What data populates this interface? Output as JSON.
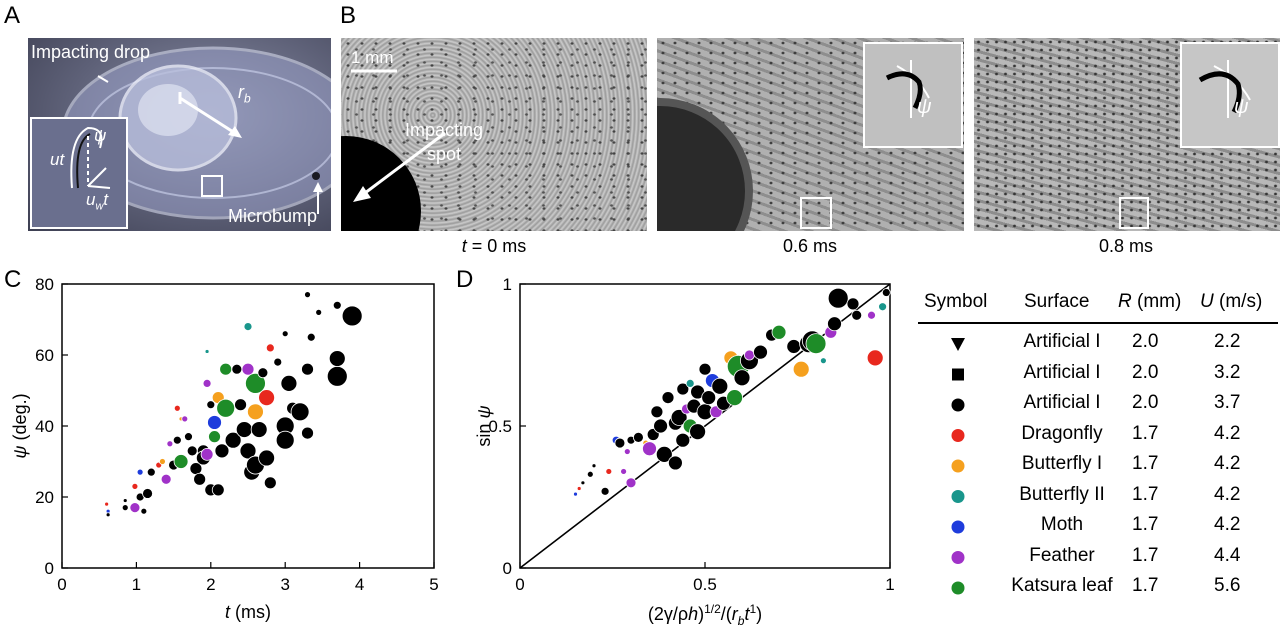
{
  "panels": {
    "A": "A",
    "B": "B",
    "C": "C",
    "D": "D"
  },
  "panelA": {
    "impacting_drop": "Impacting drop",
    "rb": "r",
    "rb_sub": "b",
    "psi": "ψ",
    "ut": "ut",
    "uwt": "u",
    "uwt_sub": "w",
    "uwt_t": "t",
    "microbump": "Microbump"
  },
  "panelB": {
    "scale": "1 mm",
    "impacting_spot": "Impacting\nspot",
    "times": [
      "t = 0 ms",
      "0.6 ms",
      "0.8 ms"
    ],
    "t_italic": "t",
    "t0_rest": " = 0 ms",
    "psi": "ψ"
  },
  "colors": {
    "black": "#000000",
    "dragonfly": "#e8281e",
    "butterfly1": "#f5a01e",
    "butterfly2": "#19968c",
    "moth": "#1e3cdc",
    "feather": "#a032c8",
    "katsura": "#1e8c28"
  },
  "chart_data": [
    {
      "type": "scatter",
      "id": "C",
      "xlabel": "t (ms)",
      "ylabel": "ψ (deg.)",
      "xlim": [
        0,
        5
      ],
      "ylim": [
        0,
        80
      ],
      "xticks": [
        "0",
        "1",
        "2",
        "3",
        "4",
        "5"
      ],
      "yticks": [
        "0",
        "20",
        "40",
        "60",
        "80"
      ],
      "points": [
        {
          "x": 0.6,
          "y": 18,
          "c": "dragonfly",
          "s": 2
        },
        {
          "x": 0.62,
          "y": 16,
          "c": "moth",
          "s": 2
        },
        {
          "x": 0.62,
          "y": 15,
          "c": "black",
          "s": 2
        },
        {
          "x": 0.85,
          "y": 17,
          "c": "black",
          "s": 3
        },
        {
          "x": 0.85,
          "y": 19,
          "c": "black",
          "s": 2
        },
        {
          "x": 0.98,
          "y": 23,
          "c": "dragonfly",
          "s": 3
        },
        {
          "x": 0.98,
          "y": 17,
          "c": "feather",
          "s": 5
        },
        {
          "x": 1.05,
          "y": 20,
          "c": "black",
          "s": 4
        },
        {
          "x": 1.1,
          "y": 16,
          "c": "black",
          "s": 3
        },
        {
          "x": 1.05,
          "y": 27,
          "c": "moth",
          "s": 3
        },
        {
          "x": 1.2,
          "y": 27,
          "c": "black",
          "s": 4
        },
        {
          "x": 1.15,
          "y": 21,
          "c": "black",
          "s": 5
        },
        {
          "x": 1.3,
          "y": 29,
          "c": "dragonfly",
          "s": 3
        },
        {
          "x": 1.35,
          "y": 30,
          "c": "butterfly1",
          "s": 3
        },
        {
          "x": 1.4,
          "y": 25,
          "c": "feather",
          "s": 5
        },
        {
          "x": 1.45,
          "y": 35,
          "c": "feather",
          "s": 3
        },
        {
          "x": 1.5,
          "y": 29,
          "c": "black",
          "s": 5
        },
        {
          "x": 1.55,
          "y": 36,
          "c": "black",
          "s": 4
        },
        {
          "x": 1.6,
          "y": 30,
          "c": "katsura",
          "s": 7
        },
        {
          "x": 1.55,
          "y": 45,
          "c": "dragonfly",
          "s": 3
        },
        {
          "x": 1.6,
          "y": 42,
          "c": "butterfly1",
          "s": 2
        },
        {
          "x": 1.65,
          "y": 42,
          "c": "feather",
          "s": 3
        },
        {
          "x": 1.7,
          "y": 37,
          "c": "black",
          "s": 4
        },
        {
          "x": 1.75,
          "y": 33,
          "c": "black",
          "s": 5
        },
        {
          "x": 1.8,
          "y": 28,
          "c": "black",
          "s": 6
        },
        {
          "x": 1.9,
          "y": 33,
          "c": "black",
          "s": 6
        },
        {
          "x": 1.85,
          "y": 25,
          "c": "black",
          "s": 6
        },
        {
          "x": 1.9,
          "y": 31,
          "c": "black",
          "s": 7
        },
        {
          "x": 1.95,
          "y": 32,
          "c": "feather",
          "s": 6
        },
        {
          "x": 1.95,
          "y": 52,
          "c": "feather",
          "s": 4
        },
        {
          "x": 1.95,
          "y": 61,
          "c": "butterfly2",
          "s": 2
        },
        {
          "x": 2.05,
          "y": 41,
          "c": "moth",
          "s": 7
        },
        {
          "x": 2.05,
          "y": 37,
          "c": "katsura",
          "s": 6
        },
        {
          "x": 2.0,
          "y": 46,
          "c": "black",
          "s": 4
        },
        {
          "x": 2.1,
          "y": 48,
          "c": "butterfly1",
          "s": 6
        },
        {
          "x": 2.15,
          "y": 33,
          "c": "black",
          "s": 7
        },
        {
          "x": 2.0,
          "y": 22,
          "c": "black",
          "s": 6
        },
        {
          "x": 2.1,
          "y": 22,
          "c": "black",
          "s": 6
        },
        {
          "x": 2.2,
          "y": 45,
          "c": "katsura",
          "s": 9
        },
        {
          "x": 2.2,
          "y": 56,
          "c": "katsura",
          "s": 6
        },
        {
          "x": 2.3,
          "y": 36,
          "c": "black",
          "s": 8
        },
        {
          "x": 2.35,
          "y": 56,
          "c": "black",
          "s": 5
        },
        {
          "x": 2.4,
          "y": 46,
          "c": "black",
          "s": 6
        },
        {
          "x": 2.45,
          "y": 39,
          "c": "black",
          "s": 8
        },
        {
          "x": 2.5,
          "y": 33,
          "c": "black",
          "s": 8
        },
        {
          "x": 2.5,
          "y": 56,
          "c": "feather",
          "s": 6
        },
        {
          "x": 2.5,
          "y": 68,
          "c": "butterfly2",
          "s": 4
        },
        {
          "x": 2.55,
          "y": 27,
          "c": "black",
          "s": 8
        },
        {
          "x": 2.6,
          "y": 29,
          "c": "black",
          "s": 9
        },
        {
          "x": 2.6,
          "y": 44,
          "c": "butterfly1",
          "s": 8
        },
        {
          "x": 2.6,
          "y": 52,
          "c": "katsura",
          "s": 10
        },
        {
          "x": 2.65,
          "y": 39,
          "c": "black",
          "s": 8
        },
        {
          "x": 2.7,
          "y": 55,
          "c": "black",
          "s": 5
        },
        {
          "x": 2.75,
          "y": 48,
          "c": "dragonfly",
          "s": 8
        },
        {
          "x": 2.75,
          "y": 31,
          "c": "black",
          "s": 8
        },
        {
          "x": 2.8,
          "y": 24,
          "c": "black",
          "s": 6
        },
        {
          "x": 2.8,
          "y": 62,
          "c": "dragonfly",
          "s": 4
        },
        {
          "x": 2.9,
          "y": 58,
          "c": "black",
          "s": 4
        },
        {
          "x": 3.0,
          "y": 40,
          "c": "black",
          "s": 9
        },
        {
          "x": 3.0,
          "y": 36,
          "c": "black",
          "s": 9
        },
        {
          "x": 3.05,
          "y": 52,
          "c": "black",
          "s": 8
        },
        {
          "x": 3.0,
          "y": 66,
          "c": "black",
          "s": 3
        },
        {
          "x": 3.1,
          "y": 45,
          "c": "black",
          "s": 6
        },
        {
          "x": 3.2,
          "y": 44,
          "c": "black",
          "s": 9
        },
        {
          "x": 3.3,
          "y": 38,
          "c": "black",
          "s": 6
        },
        {
          "x": 3.3,
          "y": 56,
          "c": "black",
          "s": 6
        },
        {
          "x": 3.3,
          "y": 77,
          "c": "black",
          "s": 3
        },
        {
          "x": 3.35,
          "y": 65,
          "c": "black",
          "s": 4
        },
        {
          "x": 3.45,
          "y": 72,
          "c": "black",
          "s": 3
        },
        {
          "x": 3.7,
          "y": 54,
          "c": "black",
          "s": 10
        },
        {
          "x": 3.7,
          "y": 59,
          "c": "black",
          "s": 8
        },
        {
          "x": 3.7,
          "y": 74,
          "c": "black",
          "s": 4
        },
        {
          "x": 3.9,
          "y": 71,
          "c": "black",
          "s": 10
        }
      ]
    },
    {
      "type": "scatter",
      "id": "D",
      "xlabel": "(2γ/ρh)^1/2/(r_b t^1)",
      "ylabel": "sin ψ",
      "xlim": [
        0,
        1
      ],
      "ylim": [
        0,
        1
      ],
      "xticks": [
        "0",
        "0.5",
        "1"
      ],
      "yticks": [
        "0",
        "0.5",
        "1"
      ],
      "line": [
        [
          0,
          0
        ],
        [
          1,
          1
        ]
      ],
      "points": [
        {
          "x": 0.15,
          "y": 0.26,
          "c": "moth",
          "s": 2
        },
        {
          "x": 0.16,
          "y": 0.28,
          "c": "dragonfly",
          "s": 2
        },
        {
          "x": 0.17,
          "y": 0.3,
          "c": "black",
          "s": 2
        },
        {
          "x": 0.19,
          "y": 0.33,
          "c": "black",
          "s": 3
        },
        {
          "x": 0.2,
          "y": 0.36,
          "c": "black",
          "s": 2
        },
        {
          "x": 0.23,
          "y": 0.27,
          "c": "black",
          "s": 4
        },
        {
          "x": 0.24,
          "y": 0.34,
          "c": "dragonfly",
          "s": 3
        },
        {
          "x": 0.26,
          "y": 0.45,
          "c": "moth",
          "s": 4
        },
        {
          "x": 0.27,
          "y": 0.44,
          "c": "black",
          "s": 5
        },
        {
          "x": 0.28,
          "y": 0.34,
          "c": "feather",
          "s": 3
        },
        {
          "x": 0.29,
          "y": 0.41,
          "c": "feather",
          "s": 3
        },
        {
          "x": 0.3,
          "y": 0.45,
          "c": "black",
          "s": 4
        },
        {
          "x": 0.3,
          "y": 0.3,
          "c": "feather",
          "s": 5
        },
        {
          "x": 0.32,
          "y": 0.46,
          "c": "black",
          "s": 5
        },
        {
          "x": 0.34,
          "y": 0.44,
          "c": "butterfly1",
          "s": 3
        },
        {
          "x": 0.35,
          "y": 0.42,
          "c": "feather",
          "s": 7
        },
        {
          "x": 0.36,
          "y": 0.47,
          "c": "black",
          "s": 6
        },
        {
          "x": 0.37,
          "y": 0.55,
          "c": "black",
          "s": 6
        },
        {
          "x": 0.38,
          "y": 0.5,
          "c": "black",
          "s": 7
        },
        {
          "x": 0.39,
          "y": 0.4,
          "c": "black",
          "s": 8
        },
        {
          "x": 0.4,
          "y": 0.6,
          "c": "black",
          "s": 6
        },
        {
          "x": 0.42,
          "y": 0.51,
          "c": "black",
          "s": 7
        },
        {
          "x": 0.42,
          "y": 0.37,
          "c": "black",
          "s": 7
        },
        {
          "x": 0.43,
          "y": 0.53,
          "c": "black",
          "s": 8
        },
        {
          "x": 0.44,
          "y": 0.45,
          "c": "black",
          "s": 7
        },
        {
          "x": 0.44,
          "y": 0.63,
          "c": "black",
          "s": 6
        },
        {
          "x": 0.45,
          "y": 0.56,
          "c": "feather",
          "s": 5
        },
        {
          "x": 0.46,
          "y": 0.65,
          "c": "butterfly2",
          "s": 4
        },
        {
          "x": 0.46,
          "y": 0.5,
          "c": "katsura",
          "s": 7
        },
        {
          "x": 0.47,
          "y": 0.57,
          "c": "black",
          "s": 7
        },
        {
          "x": 0.48,
          "y": 0.48,
          "c": "black",
          "s": 8
        },
        {
          "x": 0.48,
          "y": 0.62,
          "c": "black",
          "s": 7
        },
        {
          "x": 0.5,
          "y": 0.55,
          "c": "black",
          "s": 8
        },
        {
          "x": 0.5,
          "y": 0.7,
          "c": "black",
          "s": 6
        },
        {
          "x": 0.51,
          "y": 0.6,
          "c": "black",
          "s": 7
        },
        {
          "x": 0.52,
          "y": 0.66,
          "c": "moth",
          "s": 7
        },
        {
          "x": 0.53,
          "y": 0.55,
          "c": "feather",
          "s": 6
        },
        {
          "x": 0.54,
          "y": 0.64,
          "c": "black",
          "s": 8
        },
        {
          "x": 0.55,
          "y": 0.58,
          "c": "black",
          "s": 7
        },
        {
          "x": 0.57,
          "y": 0.74,
          "c": "butterfly1",
          "s": 7
        },
        {
          "x": 0.58,
          "y": 0.6,
          "c": "katsura",
          "s": 8
        },
        {
          "x": 0.59,
          "y": 0.71,
          "c": "katsura",
          "s": 11
        },
        {
          "x": 0.6,
          "y": 0.67,
          "c": "black",
          "s": 8
        },
        {
          "x": 0.62,
          "y": 0.73,
          "c": "black",
          "s": 9
        },
        {
          "x": 0.62,
          "y": 0.75,
          "c": "feather",
          "s": 5
        },
        {
          "x": 0.65,
          "y": 0.76,
          "c": "black",
          "s": 7
        },
        {
          "x": 0.68,
          "y": 0.82,
          "c": "black",
          "s": 6
        },
        {
          "x": 0.7,
          "y": 0.83,
          "c": "katsura",
          "s": 7
        },
        {
          "x": 0.74,
          "y": 0.78,
          "c": "black",
          "s": 7
        },
        {
          "x": 0.76,
          "y": 0.7,
          "c": "butterfly1",
          "s": 8
        },
        {
          "x": 0.78,
          "y": 0.79,
          "c": "black",
          "s": 9
        },
        {
          "x": 0.79,
          "y": 0.8,
          "c": "black",
          "s": 10
        },
        {
          "x": 0.8,
          "y": 0.79,
          "c": "katsura",
          "s": 10
        },
        {
          "x": 0.82,
          "y": 0.73,
          "c": "butterfly2",
          "s": 3
        },
        {
          "x": 0.84,
          "y": 0.83,
          "c": "feather",
          "s": 6
        },
        {
          "x": 0.85,
          "y": 0.86,
          "c": "black",
          "s": 7
        },
        {
          "x": 0.86,
          "y": 0.95,
          "c": "black",
          "s": 10
        },
        {
          "x": 0.9,
          "y": 0.93,
          "c": "black",
          "s": 6
        },
        {
          "x": 0.91,
          "y": 0.89,
          "c": "black",
          "s": 5
        },
        {
          "x": 0.95,
          "y": 0.89,
          "c": "feather",
          "s": 4
        },
        {
          "x": 0.96,
          "y": 0.74,
          "c": "dragonfly",
          "s": 8
        },
        {
          "x": 0.98,
          "y": 0.92,
          "c": "butterfly2",
          "s": 4
        },
        {
          "x": 0.99,
          "y": 0.97,
          "c": "black",
          "s": 4
        }
      ]
    }
  ],
  "legend": {
    "headers": {
      "symbol": "Symbol",
      "surface": "Surface",
      "R": "R",
      "R_unit": " (mm)",
      "U": "U",
      "U_unit": " (m/s)"
    },
    "rows": [
      {
        "marker": "triangle",
        "color": "black",
        "surface": "Artificial I",
        "R": "2.0",
        "U": "2.2"
      },
      {
        "marker": "square",
        "color": "black",
        "surface": "Artificial I",
        "R": "2.0",
        "U": "3.2"
      },
      {
        "marker": "circle",
        "color": "black",
        "surface": "Artificial I",
        "R": "2.0",
        "U": "3.7"
      },
      {
        "marker": "circle",
        "color": "dragonfly",
        "surface": "Dragonfly",
        "R": "1.7",
        "U": "4.2"
      },
      {
        "marker": "circle",
        "color": "butterfly1",
        "surface": "Butterfly I",
        "R": "1.7",
        "U": "4.2"
      },
      {
        "marker": "circle",
        "color": "butterfly2",
        "surface": "Butterfly II",
        "R": "1.7",
        "U": "4.2"
      },
      {
        "marker": "circle",
        "color": "moth",
        "surface": "Moth",
        "R": "1.7",
        "U": "4.2"
      },
      {
        "marker": "circle",
        "color": "feather",
        "surface": "Feather",
        "R": "1.7",
        "U": "4.4"
      },
      {
        "marker": "circle",
        "color": "katsura",
        "surface": "Katsura leaf",
        "R": "1.7",
        "U": "5.6"
      }
    ]
  }
}
